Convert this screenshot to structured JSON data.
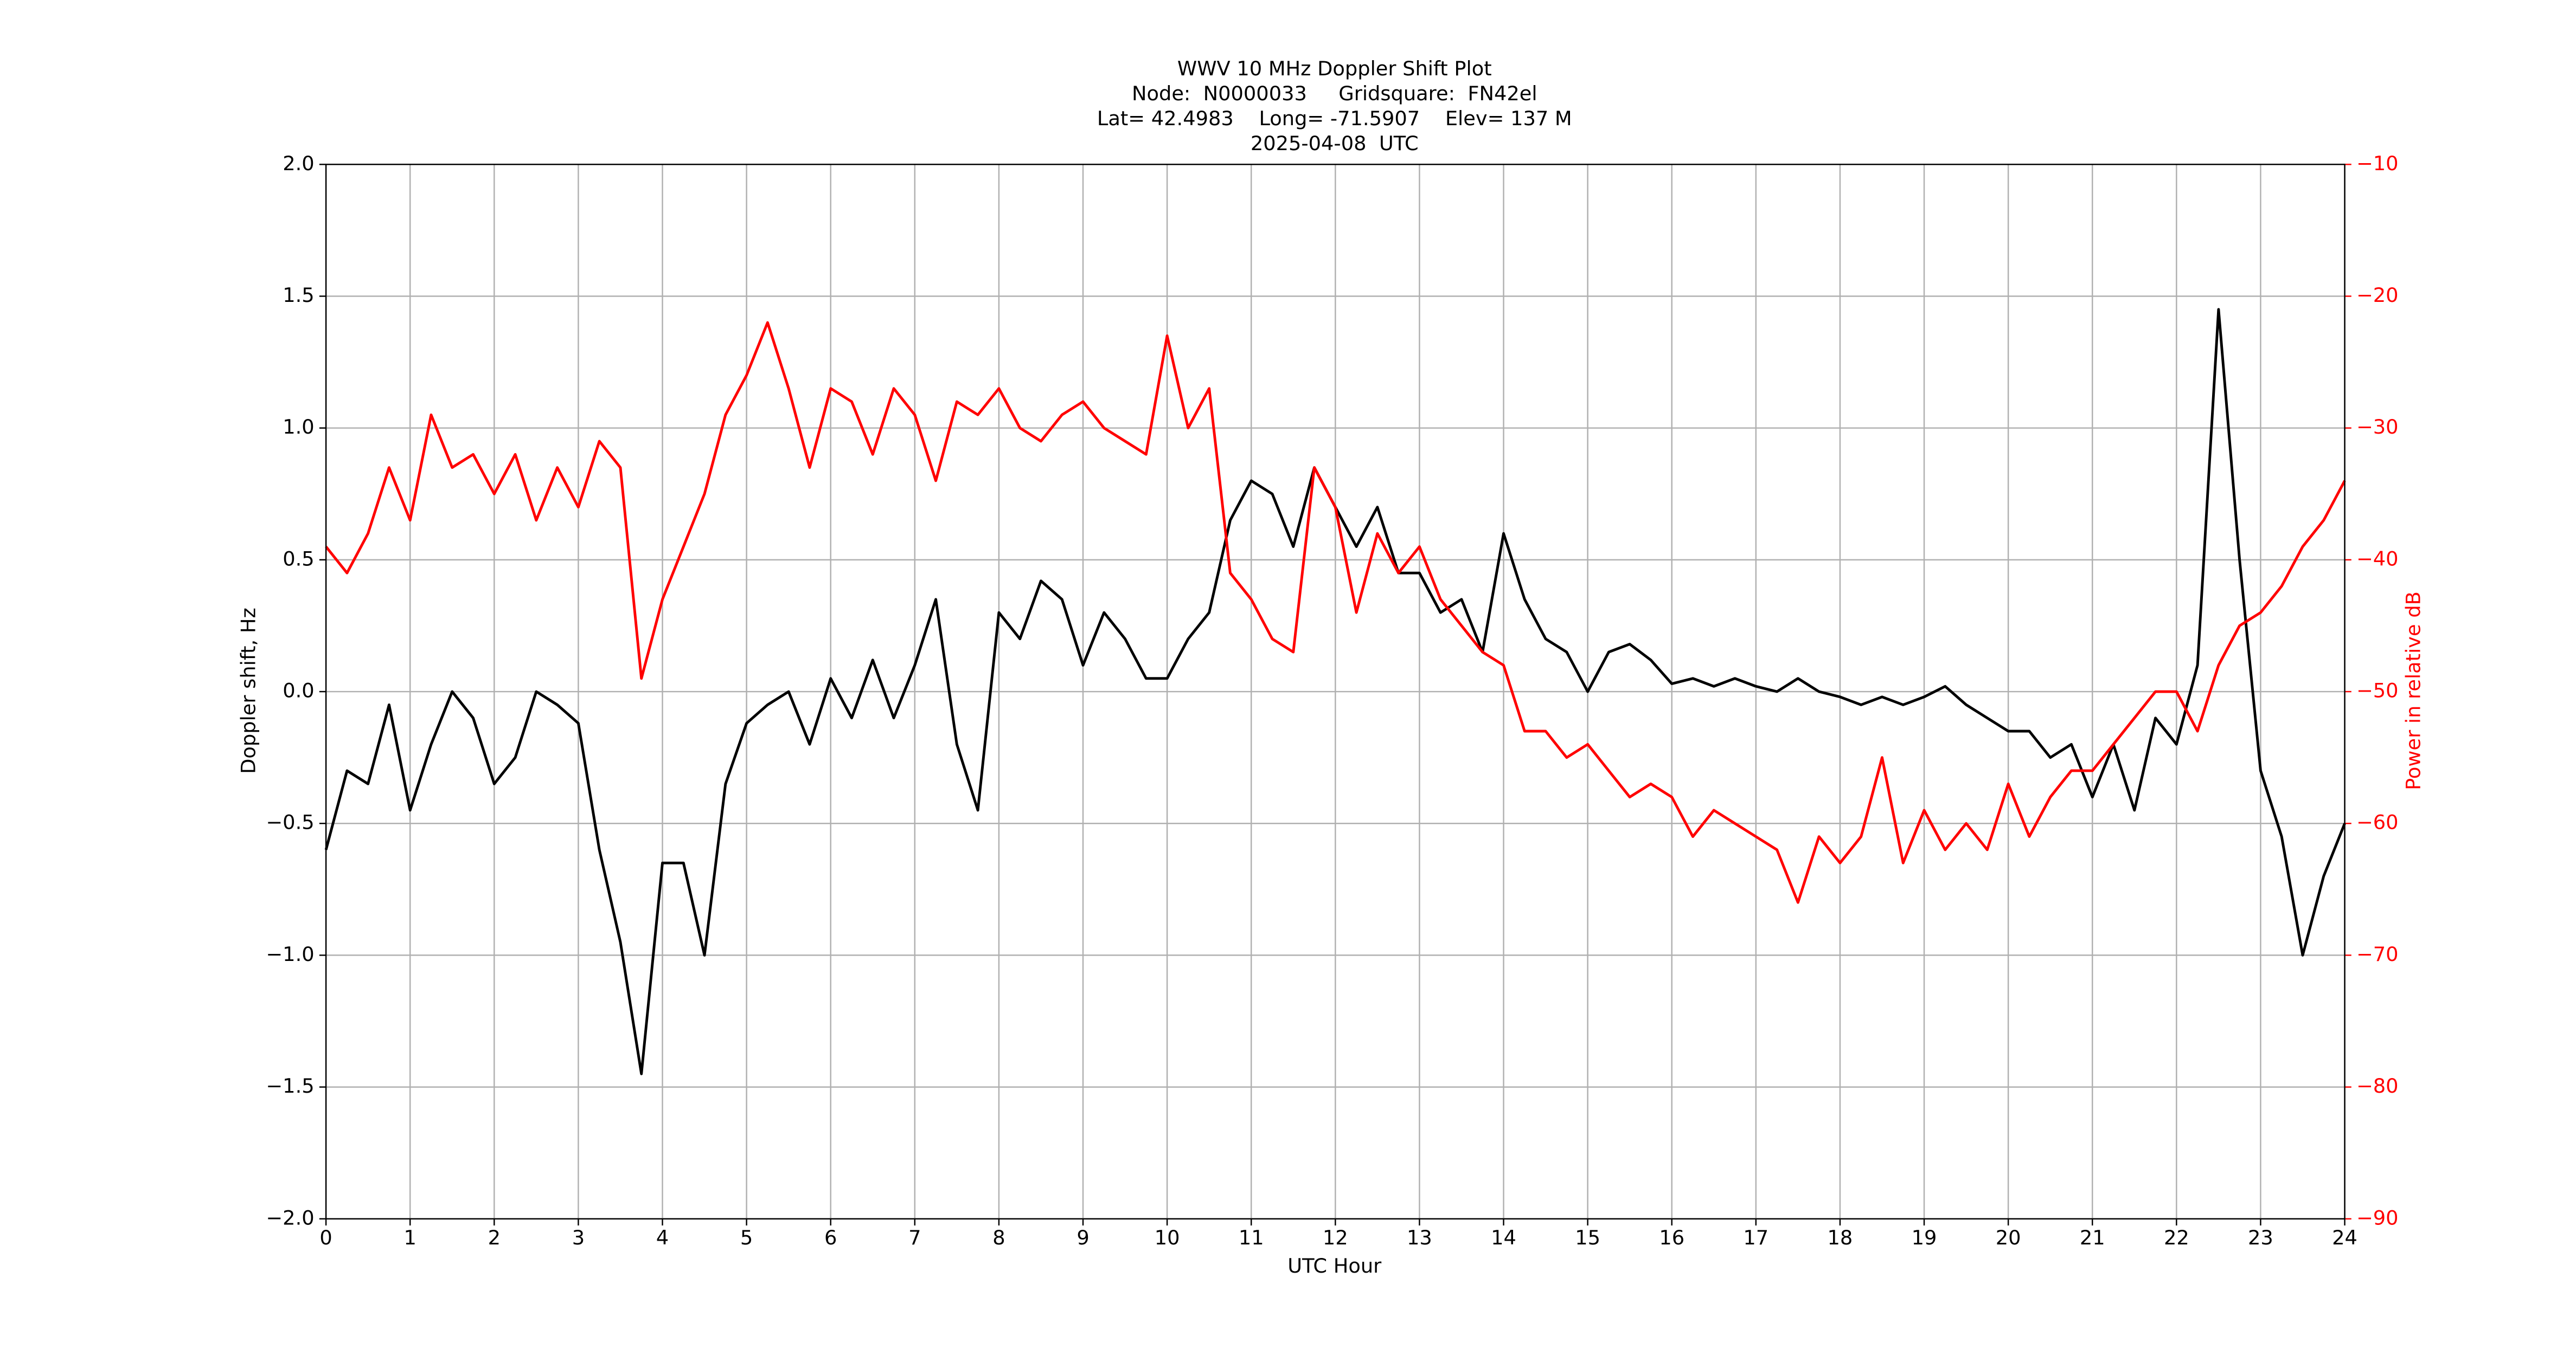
{
  "chart_data": {
    "type": "line",
    "title": [
      "WWV 10 MHz Doppler Shift Plot",
      "Node:  N0000033     Gridsquare:  FN42el",
      "Lat= 42.4983    Long= -71.5907    Elev= 137 M",
      "2025-04-08  UTC"
    ],
    "xlabel": "UTC Hour",
    "ylabel": "Doppler shift, Hz",
    "y2label": "Power in relative dB",
    "y2color": "#ff0000",
    "grid": true,
    "xlim": [
      0,
      24
    ],
    "xticks": [
      0,
      1,
      2,
      3,
      4,
      5,
      6,
      7,
      8,
      9,
      10,
      11,
      12,
      13,
      14,
      15,
      16,
      17,
      18,
      19,
      20,
      21,
      22,
      23,
      24
    ],
    "ylim": [
      -2,
      2
    ],
    "yticks": [
      {
        "value": -2,
        "label": "−2.0"
      },
      {
        "value": -1.5,
        "label": "−1.5"
      },
      {
        "value": -1,
        "label": "−1.0"
      },
      {
        "value": -0.5,
        "label": "−0.5"
      },
      {
        "value": 0,
        "label": "0.0"
      },
      0.5,
      {
        "value": 1,
        "label": "1.0"
      },
      1.5,
      {
        "value": 2,
        "label": "2.0"
      }
    ],
    "y2lim": [
      -90,
      -10
    ],
    "y2ticks": [
      {
        "value": -90,
        "label": "−90"
      },
      {
        "value": -80,
        "label": "−80"
      },
      {
        "value": -70,
        "label": "−70"
      },
      {
        "value": -60,
        "label": "−60"
      },
      {
        "value": -50,
        "label": "−50"
      },
      {
        "value": -40,
        "label": "−40"
      },
      {
        "value": -30,
        "label": "−30"
      },
      {
        "value": -20,
        "label": "−20"
      },
      {
        "value": -10,
        "label": "−10"
      }
    ],
    "x": [
      0,
      0.25,
      0.5,
      0.75,
      1,
      1.25,
      1.5,
      1.75,
      2,
      2.25,
      2.5,
      2.75,
      3,
      3.25,
      3.5,
      3.75,
      4,
      4.25,
      4.5,
      4.75,
      5,
      5.25,
      5.5,
      5.75,
      6,
      6.25,
      6.5,
      6.75,
      7,
      7.25,
      7.5,
      7.75,
      8,
      8.25,
      8.5,
      8.75,
      9,
      9.25,
      9.5,
      9.75,
      10,
      10.25,
      10.5,
      10.75,
      11,
      11.25,
      11.5,
      11.75,
      12,
      12.25,
      12.5,
      12.75,
      13,
      13.25,
      13.5,
      13.75,
      14,
      14.25,
      14.5,
      14.75,
      15,
      15.25,
      15.5,
      15.75,
      16,
      16.25,
      16.5,
      16.75,
      17,
      17.25,
      17.5,
      17.75,
      18,
      18.25,
      18.5,
      18.75,
      19,
      19.25,
      19.5,
      19.75,
      20,
      20.25,
      20.5,
      20.75,
      21,
      21.25,
      21.5,
      21.75,
      22,
      22.25,
      22.5,
      22.75,
      23,
      23.25,
      23.5,
      23.75,
      24
    ],
    "series": [
      {
        "color": "#000000",
        "values": [
          -0.6,
          -0.3,
          -0.35,
          -0.05,
          -0.45,
          -0.2,
          0.0,
          -0.1,
          -0.35,
          -0.25,
          0.0,
          -0.05,
          -0.12,
          -0.6,
          -0.95,
          -1.45,
          -0.65,
          -0.65,
          -1.0,
          -0.35,
          -0.12,
          -0.05,
          0.0,
          -0.2,
          0.05,
          -0.1,
          0.12,
          -0.1,
          0.1,
          0.35,
          -0.2,
          -0.45,
          0.3,
          0.2,
          0.42,
          0.35,
          0.1,
          0.3,
          0.2,
          0.05,
          0.05,
          0.2,
          0.3,
          0.65,
          0.8,
          0.75,
          0.55,
          0.85,
          0.7,
          0.55,
          0.7,
          0.45,
          0.45,
          0.3,
          0.35,
          0.15,
          0.6,
          0.35,
          0.2,
          0.15,
          0.0,
          0.15,
          0.18,
          0.12,
          0.03,
          0.05,
          0.02,
          0.05,
          0.02,
          0.0,
          0.05,
          0.0,
          -0.02,
          -0.05,
          -0.02,
          -0.05,
          -0.02,
          0.02,
          -0.05,
          -0.1,
          -0.15,
          -0.15,
          -0.25,
          -0.2,
          -0.4,
          -0.2,
          -0.45,
          -0.1,
          -0.2,
          0.1,
          1.45,
          0.5,
          -0.3,
          -0.55,
          -1.0,
          -0.7,
          -0.5
        ]
      },
      {
        "color": "#ff0000",
        "axis": "y2",
        "values": [
          -39,
          -41,
          -38,
          -33,
          -37,
          -29,
          -33,
          -32,
          -35,
          -32,
          -37,
          -33,
          -36,
          -31,
          -33,
          -49,
          -43,
          -39,
          -35,
          -29,
          -26,
          -22,
          -27,
          -33,
          -27,
          -28,
          -32,
          -27,
          -29,
          -34,
          -28,
          -29,
          -27,
          -30,
          -31,
          -29,
          -28,
          -30,
          -31,
          -32,
          -23,
          -30,
          -27,
          -41,
          -43,
          -46,
          -47,
          -33,
          -36,
          -44,
          -38,
          -41,
          -39,
          -43,
          -45,
          -47,
          -48,
          -53,
          -53,
          -55,
          -54,
          -56,
          -58,
          -57,
          -58,
          -61,
          -59,
          -60,
          -61,
          -62,
          -66,
          -61,
          -63,
          -61,
          -55,
          -63,
          -59,
          -62,
          -60,
          -62,
          -57,
          -61,
          -58,
          -56,
          -56,
          -54,
          -52,
          -50,
          -50,
          -53,
          -48,
          -45,
          -44,
          -42,
          -39,
          -37,
          -34
        ]
      }
    ]
  }
}
